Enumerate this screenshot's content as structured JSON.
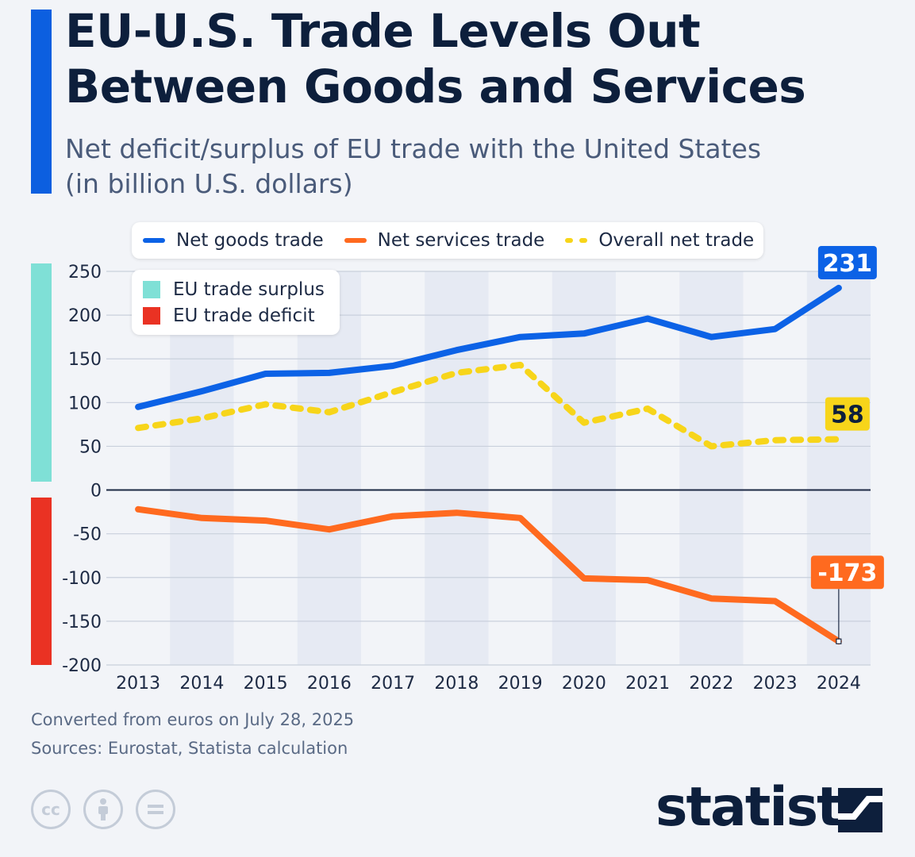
{
  "header": {
    "title_line1": "EU-U.S. Trade Levels Out",
    "title_line2": "Between Goods and Services",
    "subtitle_line1": "Net deficit/surplus of EU trade with the United States",
    "subtitle_line2": "(in billion U.S. dollars)"
  },
  "legend": {
    "goods": "Net goods trade",
    "services": "Net services trade",
    "overall": "Overall net trade",
    "surplus": "EU trade surplus",
    "deficit": "EU trade deficit"
  },
  "colors": {
    "goods": "#0c62e6",
    "services": "#ff6a1f",
    "overall": "#f7d51a",
    "surplus": "#7fe0d6",
    "deficit": "#ea3223",
    "accent": "#0c5fe0"
  },
  "chart_data": {
    "type": "line",
    "categories": [
      "2013",
      "2014",
      "2015",
      "2016",
      "2017",
      "2018",
      "2019",
      "2020",
      "2021",
      "2022",
      "2023",
      "2024"
    ],
    "series": [
      {
        "name": "Net goods trade",
        "values": [
          95,
          113,
          133,
          134,
          142,
          160,
          175,
          179,
          196,
          175,
          184,
          231
        ]
      },
      {
        "name": "Net services trade",
        "values": [
          -22,
          -32,
          -35,
          -45,
          -30,
          -26,
          -32,
          -101,
          -103,
          -124,
          -127,
          -173
        ]
      },
      {
        "name": "Overall net trade",
        "values": [
          71,
          82,
          98,
          89,
          112,
          134,
          143,
          77,
          93,
          50,
          57,
          58
        ]
      }
    ],
    "ylim": [
      -200,
      250
    ],
    "yticks": [
      250,
      200,
      150,
      100,
      50,
      0,
      -50,
      -100,
      -150,
      -200
    ],
    "end_labels": {
      "goods": "231",
      "overall": "58",
      "services": "-173"
    }
  },
  "footer": {
    "note": "Converted from euros on July 28, 2025",
    "sources": "Sources: Eurostat, Statista calculation",
    "brand": "statista",
    "license_icons": [
      "cc-icon",
      "attribution-icon",
      "no-derivatives-icon"
    ]
  }
}
